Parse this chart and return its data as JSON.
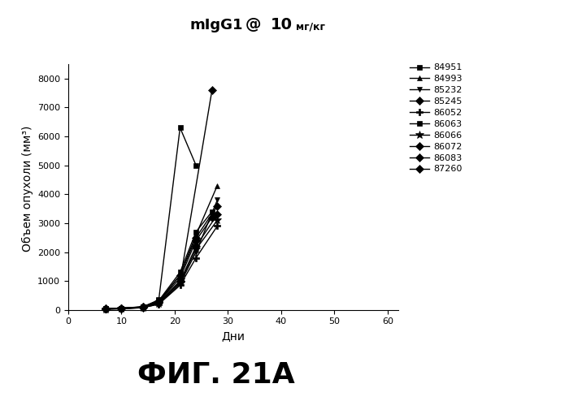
{
  "title_part1": "mIgG1",
  "title_at": " @ ",
  "title_10": "10",
  "title_unit": "  мг/кг",
  "xlabel": "Дни",
  "ylabel": "Объем опухоли (мм³)",
  "fig_label": "ФИГ. 21А",
  "xlim": [
    0,
    62
  ],
  "ylim": [
    -100,
    8500
  ],
  "xticks": [
    0,
    10,
    20,
    30,
    40,
    50,
    60
  ],
  "yticks": [
    0,
    1000,
    2000,
    3000,
    4000,
    5000,
    6000,
    7000,
    8000
  ],
  "series": [
    {
      "label": "84951",
      "marker": "s",
      "x": [
        7,
        10,
        14,
        17,
        21,
        24
      ],
      "y": [
        50,
        60,
        100,
        350,
        6300,
        5000
      ]
    },
    {
      "label": "84993",
      "marker": "^",
      "x": [
        7,
        10,
        14,
        17,
        21,
        24,
        28
      ],
      "y": [
        40,
        50,
        90,
        280,
        1200,
        2600,
        4300
      ]
    },
    {
      "label": "85232",
      "marker": "v",
      "x": [
        7,
        10,
        14,
        17,
        21,
        24,
        28
      ],
      "y": [
        30,
        40,
        80,
        200,
        900,
        2000,
        3800
      ]
    },
    {
      "label": "85245",
      "marker": "D",
      "x": [
        7,
        10,
        14,
        17,
        21,
        24,
        27
      ],
      "y": [
        35,
        50,
        100,
        280,
        1100,
        2400,
        3200
      ]
    },
    {
      "label": "86052",
      "marker": "P",
      "x": [
        7,
        10,
        14,
        17,
        21,
        24,
        28
      ],
      "y": [
        25,
        40,
        75,
        200,
        850,
        1800,
        2900
      ]
    },
    {
      "label": "86063",
      "marker": "s",
      "x": [
        7,
        10,
        14,
        17,
        21,
        24,
        27
      ],
      "y": [
        45,
        60,
        110,
        320,
        1300,
        2700,
        3400
      ]
    },
    {
      "label": "86066",
      "marker": "*",
      "x": [
        7,
        10,
        14,
        17,
        21,
        24,
        28
      ],
      "y": [
        28,
        42,
        85,
        220,
        950,
        2100,
        3100
      ]
    },
    {
      "label": "86072",
      "marker": "D",
      "x": [
        7,
        10,
        14,
        17,
        21,
        27
      ],
      "y": [
        38,
        55,
        95,
        260,
        1000,
        7600
      ]
    },
    {
      "label": "86083",
      "marker": "D",
      "x": [
        7,
        10,
        14,
        17,
        21,
        24,
        28
      ],
      "y": [
        32,
        48,
        88,
        240,
        980,
        2200,
        3300
      ]
    },
    {
      "label": "87260",
      "marker": "D",
      "x": [
        7,
        10,
        14,
        17,
        21,
        24,
        28
      ],
      "y": [
        42,
        58,
        105,
        300,
        1200,
        2500,
        3600
      ]
    }
  ],
  "background_color": "#ffffff",
  "line_color": "#000000",
  "legend_fontsize": 8,
  "axis_fontsize": 10,
  "title_fontsize": 13,
  "fig_label_fontsize": 26
}
